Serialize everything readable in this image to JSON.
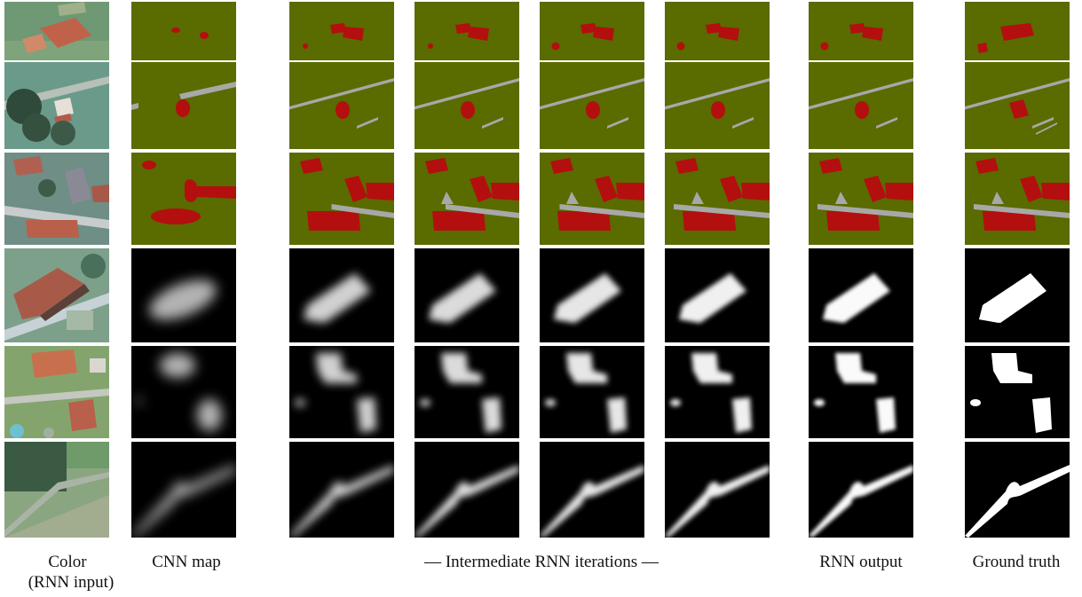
{
  "figure": {
    "columns": [
      {
        "key": "color",
        "caption": "Color",
        "caption_line2": "(RNN input)"
      },
      {
        "key": "cnn",
        "caption": "CNN map"
      },
      {
        "key": "it1",
        "caption": ""
      },
      {
        "key": "it2",
        "caption": ""
      },
      {
        "key": "it3",
        "caption": ""
      },
      {
        "key": "it4",
        "caption": ""
      },
      {
        "key": "rnn",
        "caption": "RNN output"
      },
      {
        "key": "gt",
        "caption": "Ground truth"
      }
    ],
    "middle_caption": "— Intermediate RNN iterations —",
    "rows": [
      {
        "kind": "classification",
        "scene": "buildings"
      },
      {
        "kind": "classification",
        "scene": "road-building"
      },
      {
        "kind": "classification",
        "scene": "buildings-road"
      },
      {
        "kind": "heatmap",
        "scene": "l-building"
      },
      {
        "kind": "heatmap",
        "scene": "two-buildings"
      },
      {
        "kind": "heatmap",
        "scene": "road-junction"
      }
    ],
    "colors": {
      "background_class": "#5a6b00",
      "building_class": "#b30f0f",
      "road_class": "#a8a8a8",
      "heatmap_bg": "#000000",
      "heatmap_fg": "#ffffff"
    }
  }
}
